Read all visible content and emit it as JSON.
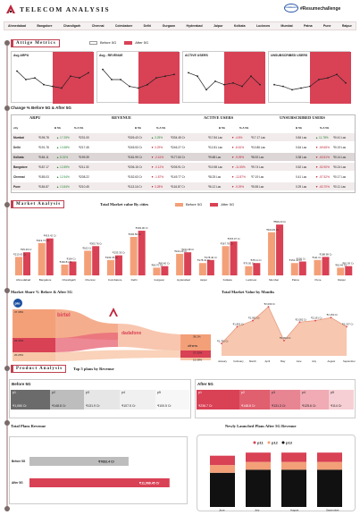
{
  "header": {
    "brand": "TELECOM ANALYSIS",
    "hashtag": "#Resumechallenge",
    "badge": "codebasics",
    "cities": [
      "Ahmedabad",
      "Bangalore",
      "Chandigarh",
      "Chennai",
      "Coimbatore",
      "Delhi",
      "Gurgaon",
      "Hyderabad",
      "Jaipur",
      "Kolkata",
      "Lucknow",
      "Mumbai",
      "Patna",
      "Pune",
      "Raipur"
    ]
  },
  "metrics": {
    "title": "Attige Metrics",
    "legend_before": "Before 5G",
    "legend_after": "After 5G",
    "cards": [
      {
        "label": "Avg ARPU",
        "values": [
          0.75,
          0.5,
          0.55,
          0.35,
          0.3,
          0.25,
          0.6,
          0.55,
          0.7
        ]
      },
      {
        "label": "Avg - REVENUE",
        "values": [
          0.8,
          0.5,
          0.5,
          0.3,
          0.25,
          0.35,
          0.55,
          0.6,
          0.65
        ]
      },
      {
        "label": "ACTIVE USERS",
        "values": [
          0.7,
          0.6,
          0.2,
          0.45,
          0.35,
          0.4,
          0.3,
          0.6,
          0.35
        ]
      },
      {
        "label": "UNSUBSCRIBED USERS",
        "values": [
          0.35,
          0.3,
          0.2,
          0.25,
          0.3,
          0.5,
          0.55,
          0.65,
          0.4
        ]
      }
    ]
  },
  "change_table": {
    "title": "Change % Before 5G & After 5G",
    "groups": [
      "ARPU",
      "REVENUE",
      "ACTIVE USERS",
      "UNSUBSCRIBED USERS"
    ],
    "sub": [
      "city",
      "B 5G",
      "% A 5G",
      "B 5G",
      "% A 5G",
      "B 5G",
      "% A 5G",
      "B 5G",
      "% A 5G"
    ],
    "rows": [
      {
        "city": "Mumbai",
        "c": [
          "₹196.78",
          "▲ 17.25%",
          "₹231.00",
          "₹326.43 Cr",
          "▲ 3.25%",
          "₹334.45 Cr",
          "₹17.84 Lac",
          "▼ -4.6%",
          "₹17.17 Lac",
          "0.84 Lac",
          "▲ 11.78%",
          "₹0.41 Lac"
        ]
      },
      {
        "city": "Delhi",
        "c": [
          "₹191.78",
          "▲ 13.58%",
          "₹217.45",
          "₹245.53 Cr",
          "▼ 3.29%",
          "₹246.27 Cr",
          "₹12.81 Lac",
          "▼ -8.61%",
          "₹10.86 Lac",
          "0.64 Lac",
          "▼ -69.65%",
          "₹0.19 Lac"
        ]
      },
      {
        "city": "Kolkata",
        "c": [
          "₹184.11",
          "▲ 8.31%",
          "₹199.39",
          "₹181.99 Cr",
          "▼ -2.41%",
          "₹177.60 Cr",
          "₹9.88 Lac",
          "▼ -9.09%",
          "₹8.92 Lac",
          "0.38 Lac",
          "▼ -63.51%",
          "₹0.14 Lac"
        ]
      },
      {
        "city": "Bangalore",
        "c": [
          "₹187.17",
          "▲ 12.89%",
          "₹211.30",
          "₹206.15 Cr",
          "▼ -0.12%",
          "₹205.91 Cr",
          "₹10.98 Lac",
          "▼ -11.55%",
          "₹9.74 Lac",
          "0.52 Lac",
          "▼ -52.90%",
          "₹0.24 Lac"
        ]
      },
      {
        "city": "Chennai",
        "c": [
          "₹185.03",
          "▲ 12.54%",
          "₹208.22",
          "₹152.63 Cr",
          "▼ -1.87%",
          "₹149.77 Cr",
          "₹8.25 Lac",
          "▼ -12.87%",
          "₹7.19 Lac",
          "0.41 Lac",
          "▼ -57.52%",
          "₹0.17 Lac"
        ]
      },
      {
        "city": "Pune",
        "c": [
          "₹184.87",
          "▲ 13.84%",
          "₹210.45",
          "₹113.16 Cr",
          "▼ 3.28%",
          "₹116.87 Cr",
          "₹6.12 Lac",
          "▼ -9.29%",
          "₹5.55 Lac",
          "0.29 Lac",
          "▼ -63.70%",
          "₹0.11 Lac"
        ]
      }
    ]
  },
  "market": {
    "title": "Market Analysis",
    "value_title": "Total Market value By cities",
    "legend_before": "Before 5G",
    "legend_after": "After 5G",
    "chart_data": {
      "type": "bar",
      "title": "Total Market value By cities",
      "categories": [
        "Ahmedabad",
        "Bangalore",
        "Chandigarh",
        "Chennai",
        "Coimbatore",
        "Delhi",
        "Gurgaon",
        "Hyderabad",
        "Jaipur",
        "Kolkata",
        "Lucknow",
        "Mumbai",
        "Patna",
        "Pune",
        "Raipur"
      ],
      "series": [
        {
          "name": "Before 5G",
          "values": [
            12,
            21,
            7,
            16,
            10,
            25,
            5,
            14,
            8,
            19,
            6,
            28,
            8,
            10,
            5
          ]
        },
        {
          "name": "After 5G",
          "values": [
            15,
            24,
            9,
            19,
            13,
            29,
            6,
            15,
            10,
            22,
            8,
            33,
            9,
            12,
            6
          ]
        }
      ],
      "labels_after": [
        "₹25.49 Cr",
        "₹419.42 Cr",
        "₹164 Cr",
        "₹305.78 Cr",
        "₹233.35 Cr",
        "₹493.06 Cr",
        "₹80.60 Cr",
        "₹244.38 Cr",
        "₹178.40 Cr",
        "₹378.37 Cr",
        "₹78.11 Cr",
        "₹596.23 Cr",
        "₹150 Cr",
        "₹188.98 Cr",
        "₹81.59 Cr"
      ],
      "labels_before": [
        "₹213.63 Cr",
        "₹419.71 Cr",
        "₹160.81 Cr",
        "₹162 Cr",
        "₹233.35 Cr",
        "₹493.59 Cr",
        "₹80.70 Cr",
        "₹244.26 Cr",
        "₹178.41 Cr",
        "₹367.78 Cr",
        "₹79.50 Cr",
        "₹434.81 Cr",
        "₹151.41 Cr",
        "₹111 Cr",
        "₹62.49 Cr"
      ]
    }
  },
  "share": {
    "title": "Market Share % Before & After 5G",
    "brands": [
      "pio",
      "birtel",
      "dadafone",
      "others"
    ],
    "left_values": [
      "37.38%",
      "26.34%",
      "20.26%"
    ],
    "right_values": [
      "38.2%",
      "27.32%",
      "15.08%"
    ]
  },
  "monthly": {
    "title": "Total Market Value by Months",
    "chart_data": {
      "type": "area",
      "title": "Total Market Value by Months",
      "categories": [
        "January",
        "February",
        "March",
        "April",
        "May",
        "June",
        "July",
        "August",
        "September"
      ],
      "values": [
        2180,
        2290,
        2330,
        2420,
        2200,
        2320,
        2330,
        2350,
        2290
      ],
      "labels": [
        "₹1,781 Cr",
        "₹1,892 Cr",
        "₹1,992 Cr",
        "₹2,009 Cr",
        "₹1,804 Cr",
        "₹2,082 Cr",
        "₹2,191 Cr",
        "₹2,150 Cr",
        "₹2,197 Cr"
      ]
    }
  },
  "product": {
    "title": "Product Analysis",
    "top_title": "Top 5 plans by Revenue",
    "before_label": "Before 5G",
    "after_label": "After 5G",
    "before_plans": [
      {
        "p": "p1",
        "v": "₹1,060 Cr"
      },
      {
        "p": "p2",
        "v": "₹148.8 Cr"
      },
      {
        "p": "p3",
        "v": "₹131.9 Cr"
      },
      {
        "p": "p4",
        "v": "₹107.5 Cr"
      },
      {
        "p": "p5",
        "v": "₹100.5 Cr"
      }
    ],
    "after_plans": [
      {
        "p": "p1",
        "v": "₹236.7 Cr"
      },
      {
        "p": "p2",
        "v": "₹148.8 Cr"
      },
      {
        "p": "p3",
        "v": "₹131.3 Cr"
      },
      {
        "p": "p4",
        "v": "₹125.6 Cr"
      },
      {
        "p": "p5",
        "v": "₹114 Cr"
      }
    ]
  },
  "plans_revenue": {
    "title": "Total Plans Revenue",
    "chart_data": {
      "type": "bar",
      "categories": [
        "Before 5G",
        "After 5G"
      ],
      "values": [
        7832,
        11068
      ],
      "labels": [
        "₹7832.4 Cr",
        "₹11,068.45 Cr"
      ]
    }
  },
  "new_plans": {
    "title": "Newly Launched Plans After 5G Revenue",
    "legend": [
      "p11",
      "p12",
      "p13"
    ],
    "chart_data": {
      "type": "bar",
      "stacked": true,
      "categories": [
        "June",
        "July",
        "August",
        "September"
      ],
      "series": [
        {
          "name": "p11",
          "values": [
            6,
            6,
            6,
            6
          ]
        },
        {
          "name": "p12",
          "values": [
            5,
            5,
            5,
            5
          ]
        },
        {
          "name": "p13",
          "values": [
            22,
            24,
            24,
            24
          ]
        }
      ]
    }
  }
}
